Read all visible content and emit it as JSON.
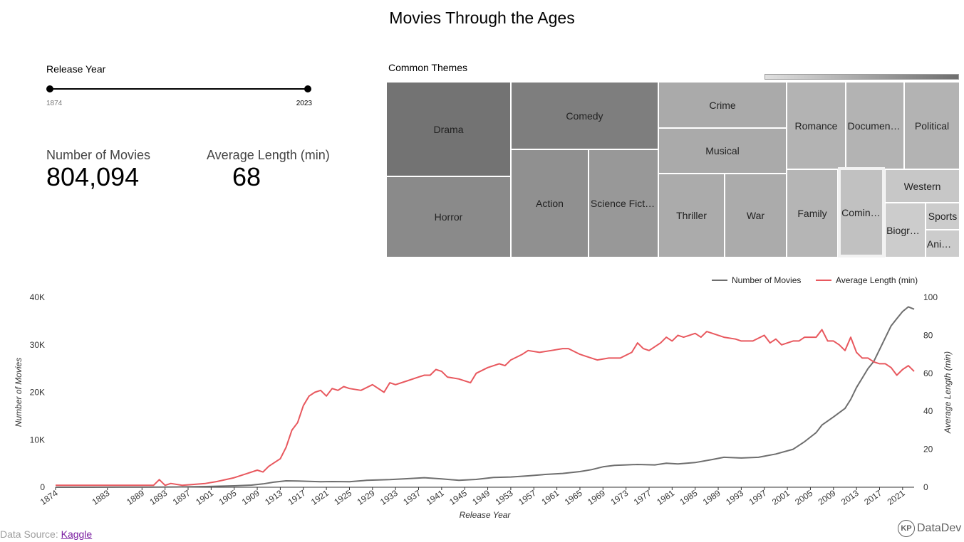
{
  "title": "Movies Through the Ages",
  "filter": {
    "label": "Release Year",
    "min": "1874",
    "max": "2023"
  },
  "kpis": [
    {
      "label": "Number of Movies",
      "value": "804,094"
    },
    {
      "label": "Average Length (min)",
      "value": "68"
    }
  ],
  "treemap": {
    "title": "Common Themes",
    "tiles": [
      {
        "name": "Drama",
        "label": "Drama",
        "color": "#737373"
      },
      {
        "name": "Horror",
        "label": "Horror",
        "color": "#8a8a8a"
      },
      {
        "name": "Comedy",
        "label": "Comedy",
        "color": "#7e7e7e"
      },
      {
        "name": "Action",
        "label": "Action",
        "color": "#909090"
      },
      {
        "name": "Science Fiction",
        "label": "Science Fiction",
        "color": "#989898"
      },
      {
        "name": "Crime",
        "label": "Crime",
        "color": "#aaaaaa"
      },
      {
        "name": "Musical",
        "label": "Musical",
        "color": "#aaaaaa"
      },
      {
        "name": "Thriller",
        "label": "Thriller",
        "color": "#ababab"
      },
      {
        "name": "War",
        "label": "War",
        "color": "#ababab"
      },
      {
        "name": "Romance",
        "label": "Romance",
        "color": "#b3b3b3"
      },
      {
        "name": "Documentary",
        "label": "Documenta…",
        "color": "#b3b3b3"
      },
      {
        "name": "Political",
        "label": "Political",
        "color": "#b3b3b3"
      },
      {
        "name": "Family",
        "label": "Family",
        "color": "#b5b5b5"
      },
      {
        "name": "Coming-of-age",
        "label": "Coming…",
        "color": "#c1c1c1"
      },
      {
        "name": "Western",
        "label": "Western",
        "color": "#c7c7c7"
      },
      {
        "name": "Biographical",
        "label": "Biograp…",
        "color": "#cccccc"
      },
      {
        "name": "Sports",
        "label": "Sports",
        "color": "#cccccc"
      },
      {
        "name": "Animation",
        "label": "Anim…",
        "color": "#cccccc"
      }
    ]
  },
  "chart_data": {
    "type": "line",
    "xlabel": "Release Year",
    "ylabel": "Number of Movies",
    "y2label": "Average Length (min)",
    "ylim": [
      0,
      40000
    ],
    "y2lim": [
      0,
      100
    ],
    "yticks": [
      "0",
      "10K",
      "20K",
      "30K",
      "40K"
    ],
    "y2ticks": [
      "0",
      "20",
      "40",
      "60",
      "80",
      "100"
    ],
    "xticks": [
      1874,
      1883,
      1889,
      1893,
      1897,
      1901,
      1905,
      1909,
      1913,
      1917,
      1921,
      1925,
      1929,
      1933,
      1937,
      1941,
      1945,
      1949,
      1953,
      1957,
      1961,
      1965,
      1969,
      1973,
      1977,
      1981,
      1985,
      1989,
      1993,
      1997,
      2001,
      2005,
      2009,
      2013,
      2017,
      2021
    ],
    "x_start": 1874,
    "x_end": 2023,
    "legend_position": "top-right",
    "series": [
      {
        "name": "Number of Movies",
        "axis": "left",
        "color": "#6e6e6e",
        "points": [
          [
            1874,
            5
          ],
          [
            1885,
            10
          ],
          [
            1890,
            20
          ],
          [
            1895,
            60
          ],
          [
            1900,
            150
          ],
          [
            1905,
            300
          ],
          [
            1908,
            450
          ],
          [
            1910,
            700
          ],
          [
            1912,
            1100
          ],
          [
            1914,
            1350
          ],
          [
            1916,
            1300
          ],
          [
            1918,
            1250
          ],
          [
            1920,
            1150
          ],
          [
            1922,
            1200
          ],
          [
            1925,
            1150
          ],
          [
            1928,
            1450
          ],
          [
            1930,
            1550
          ],
          [
            1932,
            1600
          ],
          [
            1935,
            1800
          ],
          [
            1938,
            2000
          ],
          [
            1941,
            1750
          ],
          [
            1944,
            1450
          ],
          [
            1947,
            1650
          ],
          [
            1950,
            2050
          ],
          [
            1953,
            2150
          ],
          [
            1956,
            2400
          ],
          [
            1959,
            2700
          ],
          [
            1962,
            2900
          ],
          [
            1965,
            3300
          ],
          [
            1967,
            3700
          ],
          [
            1969,
            4300
          ],
          [
            1971,
            4600
          ],
          [
            1973,
            4700
          ],
          [
            1975,
            4800
          ],
          [
            1978,
            4700
          ],
          [
            1980,
            5050
          ],
          [
            1982,
            4900
          ],
          [
            1985,
            5200
          ],
          [
            1988,
            5850
          ],
          [
            1990,
            6300
          ],
          [
            1993,
            6150
          ],
          [
            1996,
            6300
          ],
          [
            1999,
            7000
          ],
          [
            2002,
            8000
          ],
          [
            2004,
            9600
          ],
          [
            2006,
            11500
          ],
          [
            2007,
            13100
          ],
          [
            2009,
            14800
          ],
          [
            2011,
            16600
          ],
          [
            2012,
            18500
          ],
          [
            2013,
            21000
          ],
          [
            2014,
            23000
          ],
          [
            2015,
            25000
          ],
          [
            2016,
            26500
          ],
          [
            2017,
            29000
          ],
          [
            2018,
            31500
          ],
          [
            2019,
            34000
          ],
          [
            2020,
            35500
          ],
          [
            2021,
            37000
          ],
          [
            2022,
            38000
          ],
          [
            2023,
            37500
          ]
        ]
      },
      {
        "name": "Average Length (min)",
        "axis": "right",
        "color": "#e8585e",
        "points": [
          [
            1874,
            1
          ],
          [
            1891,
            1
          ],
          [
            1892,
            4
          ],
          [
            1893,
            1
          ],
          [
            1894,
            2
          ],
          [
            1896,
            1
          ],
          [
            1900,
            2
          ],
          [
            1902,
            3
          ],
          [
            1905,
            5
          ],
          [
            1907,
            7
          ],
          [
            1909,
            9
          ],
          [
            1910,
            8
          ],
          [
            1911,
            11
          ],
          [
            1913,
            15
          ],
          [
            1914,
            21
          ],
          [
            1915,
            30
          ],
          [
            1916,
            34
          ],
          [
            1917,
            43
          ],
          [
            1918,
            48
          ],
          [
            1919,
            50
          ],
          [
            1920,
            51
          ],
          [
            1921,
            48
          ],
          [
            1922,
            52
          ],
          [
            1923,
            51
          ],
          [
            1924,
            53
          ],
          [
            1925,
            52
          ],
          [
            1927,
            51
          ],
          [
            1929,
            54
          ],
          [
            1931,
            50
          ],
          [
            1932,
            55
          ],
          [
            1933,
            54
          ],
          [
            1935,
            56
          ],
          [
            1937,
            58
          ],
          [
            1938,
            59
          ],
          [
            1939,
            59
          ],
          [
            1940,
            62
          ],
          [
            1941,
            61
          ],
          [
            1942,
            58
          ],
          [
            1944,
            57
          ],
          [
            1946,
            55
          ],
          [
            1947,
            60
          ],
          [
            1949,
            63
          ],
          [
            1951,
            65
          ],
          [
            1952,
            64
          ],
          [
            1953,
            67
          ],
          [
            1955,
            70
          ],
          [
            1956,
            72
          ],
          [
            1958,
            71
          ],
          [
            1960,
            72
          ],
          [
            1962,
            73
          ],
          [
            1963,
            73
          ],
          [
            1965,
            70
          ],
          [
            1966,
            69
          ],
          [
            1968,
            67
          ],
          [
            1970,
            68
          ],
          [
            1972,
            68
          ],
          [
            1974,
            71
          ],
          [
            1975,
            76
          ],
          [
            1976,
            73
          ],
          [
            1977,
            72
          ],
          [
            1979,
            76
          ],
          [
            1980,
            79
          ],
          [
            1981,
            77
          ],
          [
            1982,
            80
          ],
          [
            1983,
            79
          ],
          [
            1984,
            80
          ],
          [
            1985,
            81
          ],
          [
            1986,
            79
          ],
          [
            1987,
            82
          ],
          [
            1988,
            81
          ],
          [
            1990,
            79
          ],
          [
            1992,
            78
          ],
          [
            1993,
            77
          ],
          [
            1995,
            77
          ],
          [
            1997,
            80
          ],
          [
            1998,
            76
          ],
          [
            1999,
            78
          ],
          [
            2000,
            75
          ],
          [
            2002,
            77
          ],
          [
            2003,
            77
          ],
          [
            2004,
            79
          ],
          [
            2006,
            79
          ],
          [
            2007,
            83
          ],
          [
            2008,
            77
          ],
          [
            2009,
            77
          ],
          [
            2010,
            75
          ],
          [
            2011,
            72
          ],
          [
            2012,
            79
          ],
          [
            2013,
            71
          ],
          [
            2014,
            68
          ],
          [
            2015,
            68
          ],
          [
            2016,
            66
          ],
          [
            2017,
            65
          ],
          [
            2018,
            65
          ],
          [
            2019,
            63
          ],
          [
            2020,
            59
          ],
          [
            2021,
            62
          ],
          [
            2022,
            64
          ],
          [
            2023,
            61
          ]
        ]
      }
    ]
  },
  "footer": {
    "source_label": "Data Source:",
    "source_link": "Kaggle"
  },
  "brand": {
    "mark": "KP",
    "name": "DataDev"
  }
}
